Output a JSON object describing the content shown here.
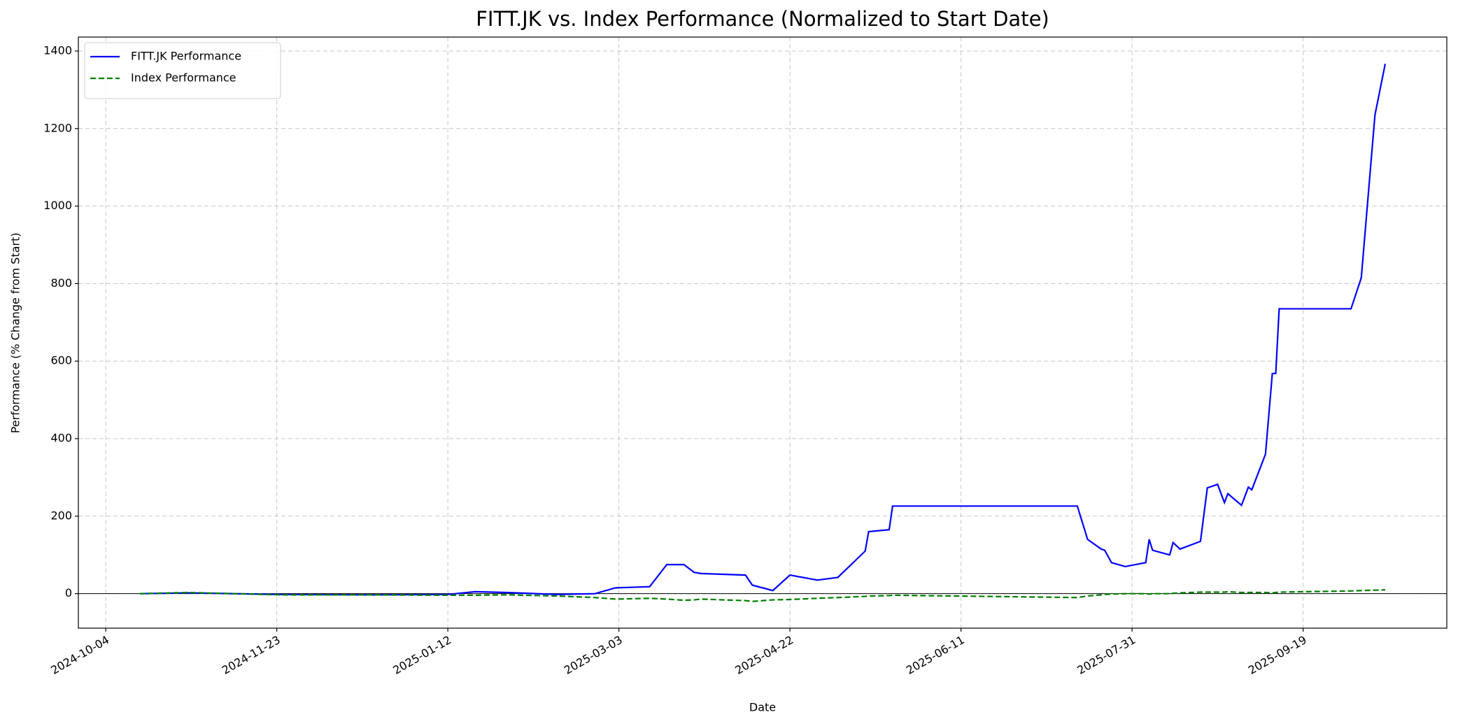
{
  "chart_data": {
    "type": "line",
    "title": "FITT.JK vs. Index Performance (Normalized to Start Date)",
    "x_label": "Date",
    "y_label": "Performance (% Change from Start)",
    "x": [
      "2024-10-14",
      "2024-10-28",
      "2024-11-24",
      "2024-12-21",
      "2025-01-12",
      "2025-01-20",
      "2025-01-29",
      "2025-02-13",
      "2025-02-24",
      "2025-03-02",
      "2025-03-12",
      "2025-03-17",
      "2025-03-22",
      "2025-03-25",
      "2025-03-27",
      "2025-04-09",
      "2025-04-11",
      "2025-04-17",
      "2025-04-22",
      "2025-04-30",
      "2025-05-06",
      "2025-05-14",
      "2025-05-15",
      "2025-05-21",
      "2025-05-22",
      "2025-07-15",
      "2025-07-18",
      "2025-07-22",
      "2025-07-23",
      "2025-07-25",
      "2025-07-29",
      "2025-08-04",
      "2025-08-05",
      "2025-08-06",
      "2025-08-11",
      "2025-08-12",
      "2025-08-14",
      "2025-08-20",
      "2025-08-22",
      "2025-08-25",
      "2025-08-27",
      "2025-08-28",
      "2025-09-01",
      "2025-09-03",
      "2025-09-04",
      "2025-09-08",
      "2025-09-10",
      "2025-09-11",
      "2025-09-12",
      "2025-10-03",
      "2025-10-06",
      "2025-10-10",
      "2025-10-13"
    ],
    "series": [
      {
        "name": "FITT.JK Performance",
        "color": "#0000ff",
        "linestyle": "solid",
        "values": [
          0,
          2,
          -2,
          -3,
          -2,
          5,
          3,
          -2,
          0,
          15,
          18,
          75,
          75,
          55,
          52,
          48,
          22,
          8,
          48,
          35,
          42,
          110,
          160,
          165,
          226,
          226,
          140,
          115,
          112,
          80,
          70,
          80,
          140,
          112,
          100,
          132,
          115,
          135,
          273,
          282,
          235,
          258,
          228,
          275,
          268,
          360,
          568,
          568,
          735,
          735,
          815,
          1235,
          1367
        ]
      },
      {
        "name": "Index Performance",
        "color": "#008000",
        "linestyle": "dashed",
        "values": [
          0,
          3,
          -3,
          -3,
          -4,
          -4,
          -3,
          -6,
          -10,
          -14,
          -12,
          -14,
          -17,
          -16,
          -14,
          -18,
          -20,
          -16,
          -15,
          -12,
          -10,
          -7,
          -6,
          -5,
          -4,
          -10,
          -6,
          -3,
          -2,
          -1,
          0,
          0,
          -1,
          0,
          0,
          1,
          2,
          4,
          4,
          4,
          4,
          5,
          3,
          3,
          3,
          3,
          2,
          3,
          4,
          7,
          8,
          9,
          10
        ]
      }
    ],
    "xlim": [
      "2024-09-26",
      "2025-10-31"
    ],
    "xticks": [
      "2024-10-04",
      "2024-11-23",
      "2025-01-12",
      "2025-03-03",
      "2025-04-22",
      "2025-06-11",
      "2025-07-31",
      "2025-09-19"
    ],
    "ylim": [
      -89,
      1436
    ],
    "yticks": [
      0,
      200,
      400,
      600,
      800,
      1000,
      1200,
      1400
    ],
    "grid": true,
    "zero_line": true,
    "legend": "upper left"
  }
}
